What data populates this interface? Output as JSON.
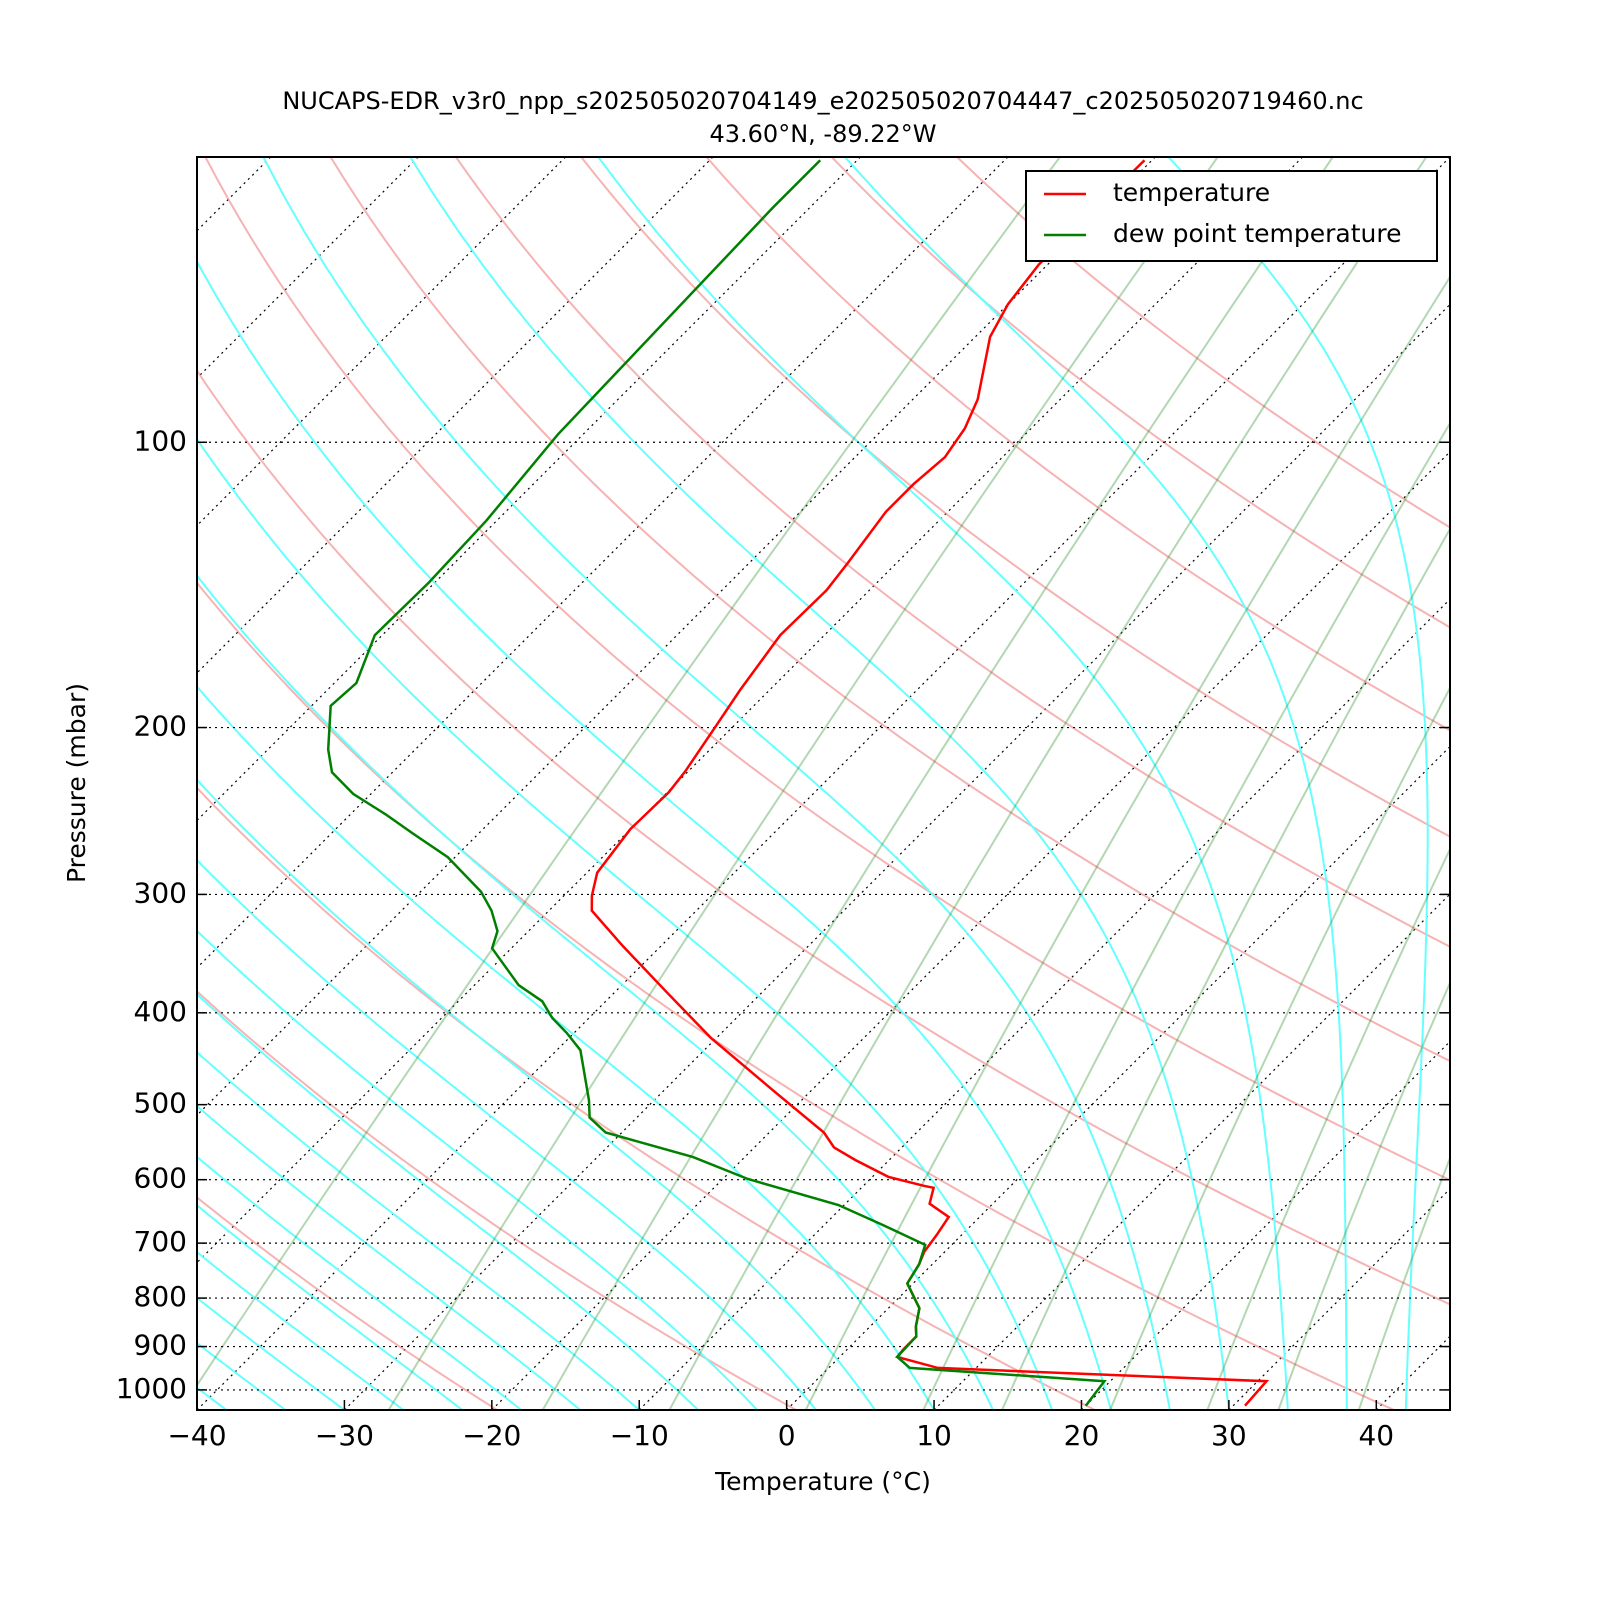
{
  "chart_data": {
    "type": "skewt",
    "title": "NUCAPS-EDR_v3r0_npp_s202505020704149_e202505020704447_c202505020719460.nc",
    "subtitle": "43.60°N, -89.22°W",
    "x_label": "Temperature (°C)",
    "y_label": "Pressure (mbar)",
    "xlim": [
      -40,
      45
    ],
    "xticks": [
      {
        "value": -40,
        "label": "−40"
      },
      {
        "value": -30,
        "label": "−30"
      },
      {
        "value": -20,
        "label": "−20"
      },
      {
        "value": -10,
        "label": "−10"
      },
      0,
      10,
      20,
      30,
      40
    ],
    "ylim": [
      1050,
      50
    ],
    "yticks": [
      100,
      200,
      300,
      400,
      500,
      600,
      700,
      800,
      900,
      1000
    ],
    "log_y": true,
    "grid": true,
    "legend": "upper right",
    "series": [
      {
        "name": "temperature",
        "color": "#ff0000",
        "pressure": [
          50.4,
          64.9,
          71.5,
          77.4,
          90.1,
          96.7,
          103.7,
          110.7,
          118.4,
          134.3,
          143.3,
          159.8,
          182.5,
          197,
          222.5,
          234,
          256,
          284.6,
          300.9,
          312,
          340,
          381,
          425,
          483,
          535,
          554.7,
          572,
          596,
          609,
          612,
          636,
          657,
          686,
          715,
          737,
          772,
          820,
          857,
          878,
          906,
          923,
          948,
          979,
          1039
        ],
        "values": [
          -60.5,
          -60.6,
          -60.0,
          -59.0,
          -55.6,
          -54.5,
          -53.9,
          -54.2,
          -54.2,
          -53.3,
          -52.9,
          -53.0,
          -52.0,
          -51.3,
          -50.2,
          -49.9,
          -50.0,
          -49.3,
          -48.1,
          -47.1,
          -42.6,
          -36.4,
          -30.4,
          -22.6,
          -16.3,
          -14.6,
          -12.3,
          -8.9,
          -5.9,
          -5.1,
          -4.3,
          -2.1,
          -1.7,
          -1.4,
          -0.9,
          -0.4,
          2.1,
          3.1,
          3.8,
          3.8,
          3.9,
          7.4,
          30.6,
          30.8
        ]
      },
      {
        "name": "dew point temperature",
        "color": "#008000",
        "pressure": [
          50.4,
          56.5,
          98.1,
          121,
          140.6,
          159.8,
          179.5,
          189.7,
          211,
          223,
          235,
          247,
          259,
          274,
          298,
          312,
          328,
          342,
          374,
          389,
          405,
          420,
          438,
          495,
          516,
          535,
          568,
          599,
          638,
          670,
          703,
          737,
          772,
          820,
          857,
          878,
          923,
          948,
          979,
          1039
        ],
        "values": [
          -82.5,
          -82.5,
          -81.7,
          -80.7,
          -80.4,
          -80.5,
          -78.5,
          -78.7,
          -75.9,
          -74.1,
          -71.2,
          -67.6,
          -64.4,
          -60.5,
          -55.9,
          -53.9,
          -52.1,
          -51.3,
          -47.0,
          -44.3,
          -42.5,
          -40.5,
          -38.4,
          -34.4,
          -33.2,
          -31.1,
          -23.5,
          -18.3,
          -10.4,
          -6.0,
          -1.8,
          -0.9,
          -0.4,
          2.1,
          3.1,
          3.8,
          3.9,
          5.5,
          19.6,
          20.0
        ]
      }
    ]
  }
}
